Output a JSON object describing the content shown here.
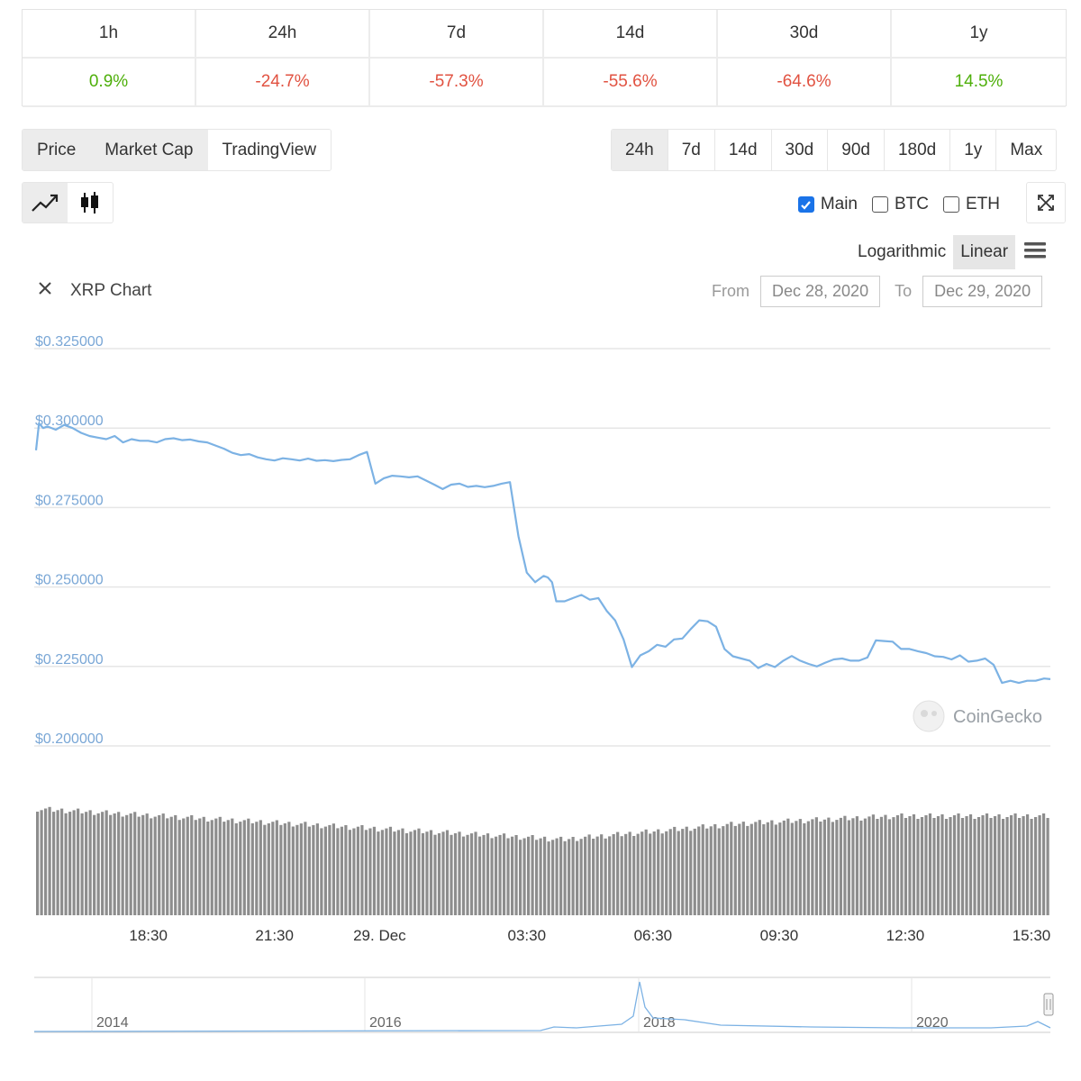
{
  "change_table": {
    "periods": [
      "1h",
      "24h",
      "7d",
      "14d",
      "30d",
      "1y"
    ],
    "values": [
      {
        "text": "0.9%",
        "sign": "pos"
      },
      {
        "text": "-24.7%",
        "sign": "neg"
      },
      {
        "text": "-57.3%",
        "sign": "neg"
      },
      {
        "text": "-55.6%",
        "sign": "neg"
      },
      {
        "text": "-64.6%",
        "sign": "neg"
      },
      {
        "text": "14.5%",
        "sign": "pos"
      }
    ]
  },
  "view_tabs": [
    "Price",
    "Market Cap",
    "TradingView"
  ],
  "range_tabs": [
    "24h",
    "7d",
    "14d",
    "30d",
    "90d",
    "180d",
    "1y",
    "Max"
  ],
  "active_range": "24h",
  "chart_type_buttons": [
    "line-chart-icon",
    "candlestick-icon"
  ],
  "toggles": [
    {
      "label": "Main",
      "checked": true
    },
    {
      "label": "BTC",
      "checked": false
    },
    {
      "label": "ETH",
      "checked": false
    }
  ],
  "scale": {
    "log_label": "Logarithmic",
    "linear_label": "Linear",
    "active": "Linear"
  },
  "chart_header": {
    "title": "XRP Chart",
    "from_label": "From",
    "from_date": "Dec 28, 2020",
    "to_label": "To",
    "to_date": "Dec 29, 2020"
  },
  "watermark": "CoinGecko",
  "colors": {
    "line": "#7cb2e4",
    "positive": "#4eaf0a",
    "negative": "#e15241",
    "volume": "#8d8d8d"
  },
  "chart_data": {
    "type": "line",
    "title": "XRP Chart",
    "ylabel": "",
    "ylim": [
      0.2,
      0.325
    ],
    "y_tick_labels": [
      "$0.325000",
      "$0.300000",
      "$0.275000",
      "$0.250000",
      "$0.225000",
      "$0.200000"
    ],
    "y_ticks": [
      0.325,
      0.3,
      0.275,
      0.25,
      0.225,
      0.2
    ],
    "x_tick_labels": [
      "18:30",
      "21:30",
      "29. Dec",
      "03:30",
      "06:30",
      "09:30",
      "12:30",
      "15:30"
    ],
    "x_ticks_hours": [
      18.5,
      21.5,
      24,
      27.5,
      30.5,
      33.5,
      36.5,
      39.5
    ],
    "x_range_hours": [
      15.83,
      39.95
    ],
    "series": [
      {
        "x_hours": [
          15.83,
          15.9,
          16.0,
          16.1,
          16.3,
          16.5,
          16.7,
          16.9,
          17.1,
          17.3,
          17.5,
          17.7,
          17.9,
          18.1,
          18.3,
          18.5,
          18.7,
          18.9,
          19.1,
          19.3,
          19.5,
          19.7,
          19.9,
          20.1,
          20.3,
          20.5,
          20.7,
          20.9,
          21.1,
          21.3,
          21.5,
          21.7,
          21.9,
          22.1,
          22.3,
          22.5,
          22.7,
          22.9,
          23.1,
          23.3,
          23.5,
          23.7,
          23.9,
          24.1,
          24.3,
          24.5,
          24.7,
          24.9,
          25.1,
          25.3,
          25.5,
          25.7,
          25.9,
          26.1,
          26.3,
          26.5,
          26.7,
          26.9,
          27.1,
          27.3,
          27.5,
          27.7,
          27.8,
          27.9,
          28.0,
          28.1,
          28.2,
          28.4,
          28.6,
          28.8,
          29.0,
          29.2,
          29.4,
          29.6,
          29.8,
          30.0,
          30.2,
          30.4,
          30.6,
          30.8,
          31.0,
          31.2,
          31.4,
          31.6,
          31.8,
          32.0,
          32.2,
          32.4,
          32.6,
          32.8,
          33.0,
          33.2,
          33.4,
          33.6,
          33.8,
          34.0,
          34.2,
          34.4,
          34.6,
          34.8,
          35.0,
          35.2,
          35.4,
          35.6,
          35.8,
          36.0,
          36.2,
          36.4,
          36.6,
          36.8,
          37.0,
          37.2,
          37.4,
          37.6,
          37.8,
          38.0,
          38.2,
          38.4,
          38.6,
          38.8,
          39.0,
          39.2,
          39.4,
          39.6,
          39.8,
          39.95
        ],
        "values": [
          0.293,
          0.3015,
          0.3,
          0.3005,
          0.2995,
          0.301,
          0.3,
          0.2985,
          0.2975,
          0.297,
          0.2965,
          0.2975,
          0.2955,
          0.2965,
          0.296,
          0.296,
          0.2955,
          0.2965,
          0.2968,
          0.2962,
          0.2964,
          0.2958,
          0.2955,
          0.2945,
          0.2935,
          0.2922,
          0.2915,
          0.2918,
          0.2908,
          0.2902,
          0.2898,
          0.2905,
          0.2902,
          0.2898,
          0.2904,
          0.2897,
          0.2899,
          0.2896,
          0.29,
          0.2902,
          0.2915,
          0.2925,
          0.2825,
          0.2842,
          0.285,
          0.2848,
          0.2845,
          0.2848,
          0.2835,
          0.2822,
          0.2808,
          0.2822,
          0.2825,
          0.2815,
          0.2818,
          0.2814,
          0.2818,
          0.2825,
          0.283,
          0.266,
          0.2545,
          0.2515,
          0.2525,
          0.2535,
          0.253,
          0.2515,
          0.2455,
          0.2455,
          0.2465,
          0.2475,
          0.246,
          0.2465,
          0.2425,
          0.2395,
          0.2335,
          0.2248,
          0.2285,
          0.2298,
          0.2318,
          0.2312,
          0.2335,
          0.2338,
          0.2368,
          0.2395,
          0.2392,
          0.2375,
          0.2305,
          0.2282,
          0.2275,
          0.2268,
          0.2245,
          0.2258,
          0.2248,
          0.2268,
          0.2283,
          0.2268,
          0.2258,
          0.225,
          0.2262,
          0.2272,
          0.2275,
          0.2268,
          0.2268,
          0.2278,
          0.2332,
          0.233,
          0.2328,
          0.2305,
          0.2305,
          0.2298,
          0.2292,
          0.2282,
          0.228,
          0.2272,
          0.2285,
          0.2265,
          0.2268,
          0.2275,
          0.2255,
          0.2198,
          0.2205,
          0.2198,
          0.2205,
          0.2205,
          0.2212,
          0.221
        ]
      }
    ],
    "volume_relative": "decreasing from start to about 03:30, then rising again toward end",
    "navigator_x_labels": [
      "2014",
      "2016",
      "2018",
      "2020"
    ]
  }
}
